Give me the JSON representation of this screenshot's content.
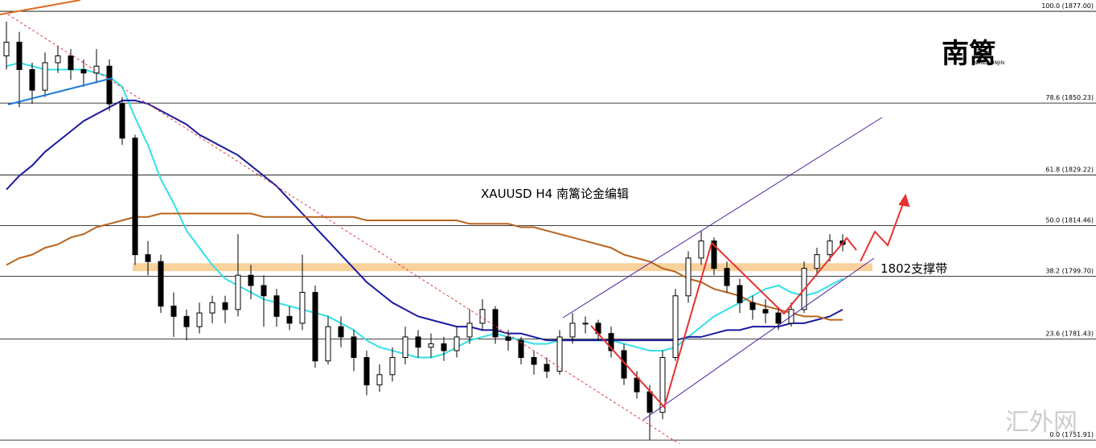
{
  "chart_data": {
    "type": "candlestick",
    "title": "XAUUSD  H4  南篱论金编辑",
    "logo": {
      "text": "南篱",
      "subtext": "NANLILUNJIN"
    },
    "watermark": "汇外网",
    "annotation": "1802支撑带",
    "support_band": [
      1801.2,
      1803.5
    ],
    "ylim": [
      1749.6,
      1880.3
    ],
    "fib_levels": [
      {
        "value": 1877.0,
        "label": "100.0 (1877.00)"
      },
      {
        "value": 1850.23,
        "label": "78.6 (1850.23)"
      },
      {
        "value": 1829.22,
        "label": "61.8 (1829.22)"
      },
      {
        "value": 1814.46,
        "label": "50.0 (1814.46)"
      },
      {
        "value": 1799.7,
        "label": "38.2 (1799.70)"
      },
      {
        "value": 1781.43,
        "label": "23.6 (1781.43)"
      },
      {
        "value": 1751.91,
        "label": "0.0 (1751.91)"
      }
    ],
    "candles": [
      [
        1864,
        1874,
        1860,
        1868
      ],
      [
        1868,
        1871,
        1849,
        1860
      ],
      [
        1860,
        1862,
        1850,
        1854
      ],
      [
        1854,
        1865,
        1852,
        1862
      ],
      [
        1862,
        1867,
        1859,
        1864
      ],
      [
        1864,
        1866,
        1857,
        1860
      ],
      [
        1860,
        1863,
        1855,
        1859
      ],
      [
        1859,
        1866,
        1856,
        1861
      ],
      [
        1861,
        1863,
        1848,
        1850
      ],
      [
        1850,
        1852,
        1838,
        1840
      ],
      [
        1840,
        1841,
        1803,
        1806
      ],
      [
        1806,
        1810,
        1800,
        1804
      ],
      [
        1804,
        1806,
        1789,
        1791
      ],
      [
        1791,
        1795,
        1782,
        1788
      ],
      [
        1788,
        1790,
        1781,
        1785
      ],
      [
        1785,
        1792,
        1783,
        1789
      ],
      [
        1789,
        1794,
        1786,
        1792
      ],
      [
        1792,
        1794,
        1786,
        1790
      ],
      [
        1790,
        1812,
        1788,
        1800
      ],
      [
        1800,
        1803,
        1793,
        1797
      ],
      [
        1797,
        1800,
        1785,
        1794
      ],
      [
        1794,
        1796,
        1785,
        1788
      ],
      [
        1788,
        1791,
        1784,
        1786
      ],
      [
        1786,
        1806,
        1784,
        1795
      ],
      [
        1795,
        1797,
        1773,
        1775
      ],
      [
        1775,
        1788,
        1774,
        1785
      ],
      [
        1785,
        1788,
        1779,
        1782
      ],
      [
        1782,
        1784,
        1772,
        1776
      ],
      [
        1776,
        1778,
        1765,
        1768
      ],
      [
        1768,
        1774,
        1766,
        1771
      ],
      [
        1771,
        1779,
        1769,
        1776
      ],
      [
        1776,
        1785,
        1774,
        1782
      ],
      [
        1782,
        1784,
        1776,
        1779
      ],
      [
        1779,
        1783,
        1776,
        1780
      ],
      [
        1780,
        1782,
        1775,
        1778
      ],
      [
        1778,
        1785,
        1776,
        1782
      ],
      [
        1782,
        1790,
        1780,
        1786
      ],
      [
        1786,
        1793,
        1784,
        1790
      ],
      [
        1790,
        1791,
        1780,
        1782
      ],
      [
        1782,
        1784,
        1778,
        1781
      ],
      [
        1781,
        1782,
        1774,
        1776
      ],
      [
        1776,
        1778,
        1771,
        1774
      ],
      [
        1774,
        1776,
        1770,
        1772
      ],
      [
        1772,
        1784,
        1771,
        1782
      ],
      [
        1782,
        1789,
        1780,
        1786
      ],
      [
        1786,
        1788,
        1783,
        1786
      ],
      [
        1786,
        1787,
        1781,
        1783
      ],
      [
        1783,
        1785,
        1776,
        1778
      ],
      [
        1778,
        1780,
        1768,
        1770
      ],
      [
        1770,
        1772,
        1764,
        1766
      ],
      [
        1766,
        1768,
        1752,
        1760
      ],
      [
        1760,
        1778,
        1758,
        1776
      ],
      [
        1776,
        1796,
        1775,
        1794
      ],
      [
        1794,
        1807,
        1792,
        1805
      ],
      [
        1805,
        1813,
        1803,
        1810
      ],
      [
        1810,
        1811,
        1800,
        1802
      ],
      [
        1802,
        1804,
        1795,
        1797
      ],
      [
        1797,
        1799,
        1789,
        1792
      ],
      [
        1792,
        1794,
        1787,
        1790
      ],
      [
        1790,
        1793,
        1786,
        1789
      ],
      [
        1789,
        1790,
        1784,
        1786
      ],
      [
        1786,
        1792,
        1785,
        1790
      ],
      [
        1790,
        1804,
        1789,
        1802
      ],
      [
        1802,
        1808,
        1800,
        1806
      ],
      [
        1806,
        1812,
        1804,
        1810
      ],
      [
        1810,
        1812,
        1807,
        1809
      ]
    ],
    "series": [
      {
        "color": "#33e0e8",
        "values": [
          1861,
          1862,
          1861,
          1860,
          1860,
          1860,
          1860,
          1859,
          1858,
          1855,
          1846,
          1838,
          1828,
          1821,
          1813,
          1808,
          1803,
          1799,
          1797,
          1795,
          1793,
          1792,
          1791,
          1790,
          1789,
          1788,
          1786,
          1784,
          1781,
          1779,
          1778,
          1777,
          1776,
          1776,
          1777,
          1779,
          1781,
          1782,
          1783,
          1782,
          1781,
          1780,
          1780,
          1781,
          1781,
          1781,
          1781,
          1781,
          1780,
          1779,
          1778,
          1778,
          1779,
          1782,
          1785,
          1788,
          1790,
          1792,
          1794,
          1796,
          1797,
          1795,
          1794,
          1795,
          1797,
          1799
        ]
      },
      {
        "color": "#1a1aa0",
        "values": [
          1825,
          1829,
          1832,
          1836,
          1839,
          1842,
          1845,
          1847,
          1849,
          1851,
          1851,
          1850,
          1848,
          1846,
          1844,
          1841,
          1839,
          1837,
          1835,
          1832,
          1829,
          1826,
          1822,
          1818,
          1814,
          1810,
          1806,
          1802,
          1798,
          1795,
          1792,
          1790,
          1788,
          1787,
          1786,
          1785,
          1785,
          1784,
          1784,
          1783,
          1783,
          1782,
          1781,
          1781,
          1781,
          1781,
          1781,
          1781,
          1781,
          1781,
          1781,
          1781,
          1781,
          1782,
          1782,
          1783,
          1784,
          1784,
          1785,
          1785,
          1785,
          1786,
          1786,
          1787,
          1788,
          1790
        ]
      },
      {
        "color": "#b8641e",
        "values": [
          1803,
          1805,
          1806,
          1808,
          1809,
          1811,
          1812,
          1814,
          1815,
          1816,
          1817,
          1817,
          1818,
          1818,
          1818,
          1818,
          1818,
          1818,
          1818,
          1818,
          1817,
          1817,
          1817,
          1817,
          1817,
          1817,
          1817,
          1817,
          1816,
          1816,
          1816,
          1816,
          1816,
          1816,
          1816,
          1816,
          1815,
          1815,
          1815,
          1815,
          1814,
          1814,
          1813,
          1812,
          1811,
          1810,
          1809,
          1808,
          1806,
          1805,
          1804,
          1802,
          1801,
          1799,
          1798,
          1796,
          1795,
          1794,
          1792,
          1791,
          1790,
          1789,
          1788,
          1788,
          1787,
          1787
        ]
      }
    ]
  }
}
